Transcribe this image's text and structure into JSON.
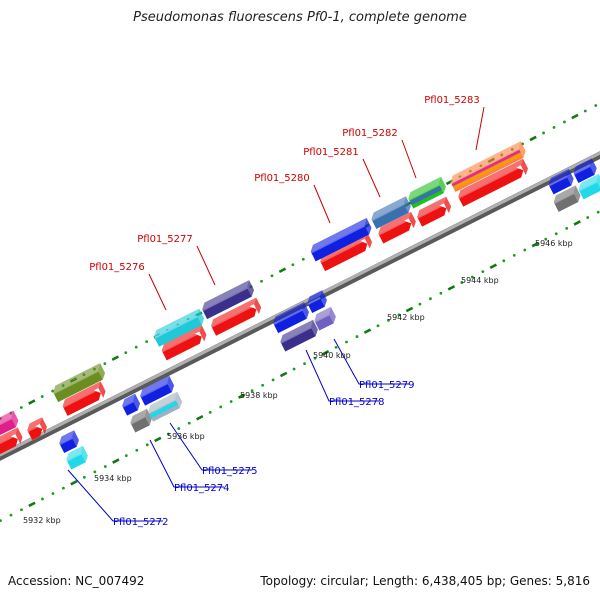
{
  "title": "Pseudomonas fluorescens Pf0-1, complete genome",
  "footer": {
    "accession": "Accession: NC_007492",
    "topology": "Topology: circular; Length: 6,438,405 bp; Genes: 5,816"
  },
  "colors": {
    "backbone": "#8a8a8a",
    "tick_dot": "#1a9e1a",
    "tick_major": "#0f7a0f",
    "forward_label": "#cc0000",
    "reverse_label": "#0000cc",
    "leader_forward": "#cc0000",
    "leader_reverse": "#0000cc"
  },
  "scale_labels": [
    "5932 kbp",
    "5934 kbp",
    "5936 kbp",
    "5938 kbp",
    "5940 kbp",
    "5942 kbp",
    "5944 kbp",
    "5946 kbp"
  ],
  "forward_genes": [
    {
      "id": "Pfl01_5276",
      "colors": [
        "#20c8d8"
      ]
    },
    {
      "id": "Pfl01_5277",
      "colors": [
        "#3a2f8a"
      ]
    },
    {
      "id": "Pfl01_5280",
      "colors": [
        "#1020e0"
      ]
    },
    {
      "id": "Pfl01_5281",
      "colors": [
        "#3a6fb0"
      ]
    },
    {
      "id": "Pfl01_5282",
      "colors": [
        "#20c020",
        "#3a6fb0"
      ]
    },
    {
      "id": "Pfl01_5283",
      "colors": [
        "#ff8040",
        "#e03080",
        "#f0a000"
      ]
    }
  ],
  "reverse_genes": [
    {
      "id": "Pfl01_5272"
    },
    {
      "id": "Pfl01_5274"
    },
    {
      "id": "Pfl01_5275"
    },
    {
      "id": "Pfl01_5278"
    },
    {
      "id": "Pfl01_5279"
    }
  ]
}
